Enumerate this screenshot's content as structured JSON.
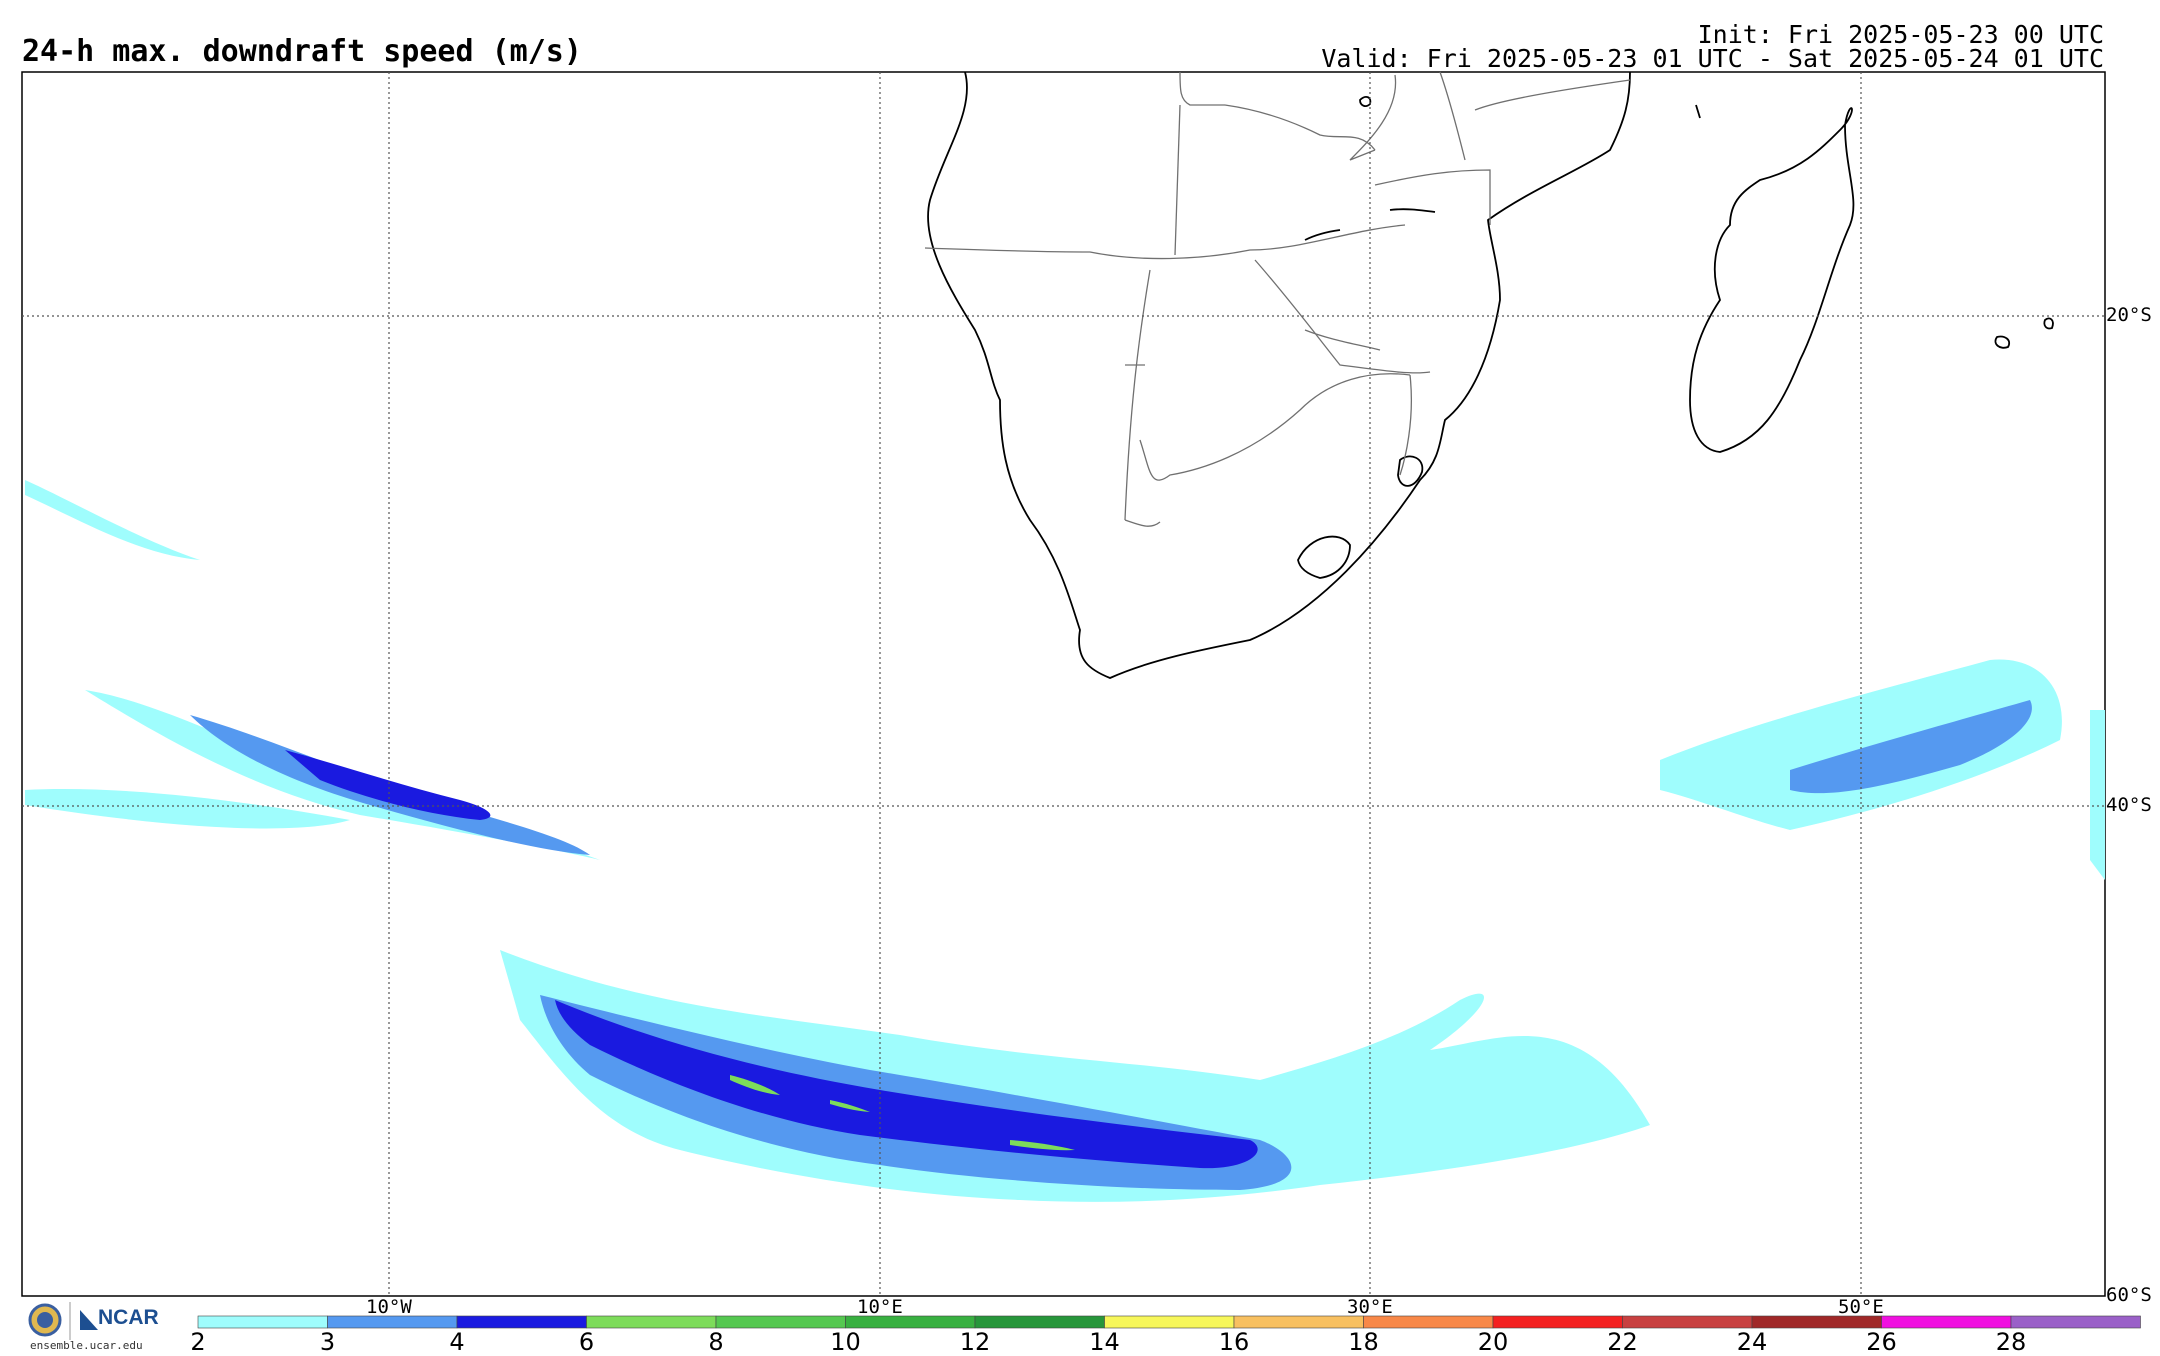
{
  "header": {
    "title": "24-h max. downdraft speed (m/s)",
    "init": "Init: Fri 2025-05-23 00 UTC",
    "valid": "Valid: Fri 2025-05-23 01 UTC - Sat 2025-05-24 01 UTC"
  },
  "axes": {
    "lon_labels": [
      "10°W",
      "10°E",
      "30°E",
      "50°E"
    ],
    "lat_labels": [
      "20°S",
      "40°S",
      "60°S"
    ]
  },
  "colorbar": {
    "ticks": [
      "2",
      "3",
      "4",
      "6",
      "8",
      "10",
      "12",
      "14",
      "16",
      "18",
      "20",
      "22",
      "24",
      "26",
      "28"
    ],
    "colors": [
      "#9ffdfd",
      "#5599f0",
      "#1a1ae0",
      "#7ddc5a",
      "#55c850",
      "#38b040",
      "#27963a",
      "#f7f75a",
      "#f8c060",
      "#f88848",
      "#f42020",
      "#c84040",
      "#a02828",
      "#f010e0",
      "#9a60c8"
    ]
  },
  "logo": {
    "org": "NCAR",
    "site": "ensemble.ucar.edu"
  },
  "colors": {
    "coast": "#000000",
    "border": "#707070",
    "grid": "#555555"
  }
}
